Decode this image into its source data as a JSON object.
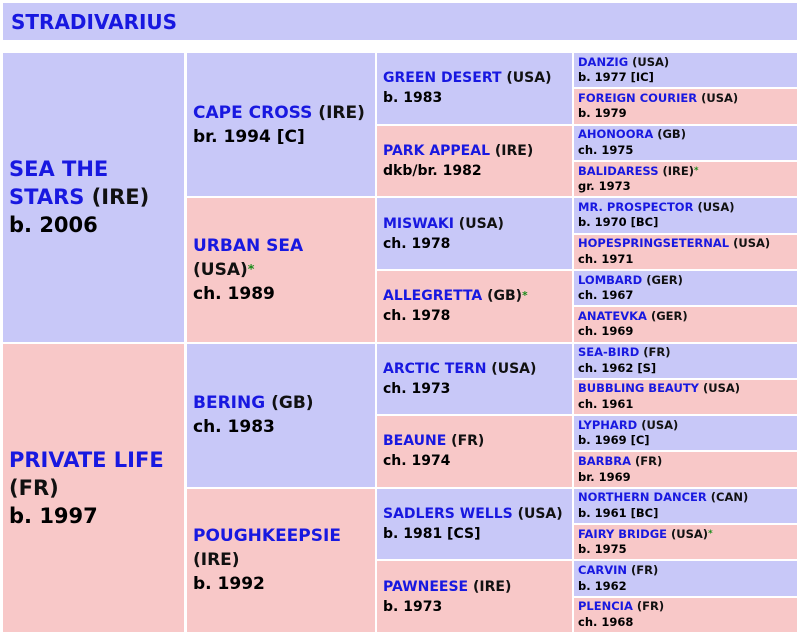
{
  "title": "STRADIVARIUS",
  "gen1": [
    {
      "name": "SEA THE STARS",
      "country": "(IRE)",
      "star": "",
      "info": "b. 2006"
    },
    {
      "name": "PRIVATE LIFE",
      "country": "(FR)",
      "star": "",
      "info": "b. 1997"
    }
  ],
  "gen2": [
    {
      "name": "CAPE CROSS",
      "country": "(IRE)",
      "star": "",
      "info": "br. 1994 [C]"
    },
    {
      "name": "URBAN SEA",
      "country": "(USA)",
      "star": "*",
      "info": "ch. 1989"
    },
    {
      "name": "BERING",
      "country": "(GB)",
      "star": "",
      "info": "ch. 1983"
    },
    {
      "name": "POUGHKEEPSIE",
      "country": "(IRE)",
      "star": "",
      "info": "b. 1992"
    }
  ],
  "gen3": [
    {
      "name": "GREEN DESERT",
      "country": "(USA)",
      "star": "",
      "info": "b. 1983"
    },
    {
      "name": "PARK APPEAL",
      "country": "(IRE)",
      "star": "",
      "info": "dkb/br. 1982"
    },
    {
      "name": "MISWAKI",
      "country": "(USA)",
      "star": "",
      "info": "ch. 1978"
    },
    {
      "name": "ALLEGRETTA",
      "country": "(GB)",
      "star": "*",
      "info": "ch. 1978"
    },
    {
      "name": "ARCTIC TERN",
      "country": "(USA)",
      "star": "",
      "info": "ch. 1973"
    },
    {
      "name": "BEAUNE",
      "country": "(FR)",
      "star": "",
      "info": "ch. 1974"
    },
    {
      "name": "SADLERS WELLS",
      "country": "(USA)",
      "star": "",
      "info": "b. 1981 [CS]"
    },
    {
      "name": "PAWNEESE",
      "country": "(IRE)",
      "star": "",
      "info": "b. 1973"
    }
  ],
  "gen4": [
    {
      "name": "DANZIG",
      "country": "(USA)",
      "star": "",
      "info": "b. 1977 [IC]"
    },
    {
      "name": "FOREIGN COURIER",
      "country": "(USA)",
      "star": "",
      "info": "b. 1979"
    },
    {
      "name": "AHONOORA",
      "country": "(GB)",
      "star": "",
      "info": "ch. 1975"
    },
    {
      "name": "BALIDARESS",
      "country": "(IRE)",
      "star": "*",
      "info": "gr. 1973"
    },
    {
      "name": "MR. PROSPECTOR",
      "country": "(USA)",
      "star": "",
      "info": "b. 1970 [BC]"
    },
    {
      "name": "HOPESPRINGSETERNAL",
      "country": "(USA)",
      "star": "",
      "info": "ch. 1971"
    },
    {
      "name": "LOMBARD",
      "country": "(GER)",
      "star": "",
      "info": "ch. 1967"
    },
    {
      "name": "ANATEVKA",
      "country": "(GER)",
      "star": "",
      "info": "ch. 1969"
    },
    {
      "name": "SEA-BIRD",
      "country": "(FR)",
      "star": "",
      "info": "ch. 1962 [S]"
    },
    {
      "name": "BUBBLING BEAUTY",
      "country": "(USA)",
      "star": "",
      "info": "ch. 1961"
    },
    {
      "name": "LYPHARD",
      "country": "(USA)",
      "star": "",
      "info": "b. 1969 [C]"
    },
    {
      "name": "BARBRA",
      "country": "(FR)",
      "star": "",
      "info": "br. 1969"
    },
    {
      "name": "NORTHERN DANCER",
      "country": "(CAN)",
      "star": "",
      "info": "b. 1961 [BC]"
    },
    {
      "name": "FAIRY BRIDGE",
      "country": "(USA)",
      "star": "*",
      "info": "b. 1975"
    },
    {
      "name": "CARVIN",
      "country": "(FR)",
      "star": "",
      "info": "b. 1962"
    },
    {
      "name": "PLENCIA",
      "country": "(FR)",
      "star": "",
      "info": "ch. 1968"
    }
  ],
  "colors": {
    "sire_bg": "#c8c8f8",
    "dam_bg": "#f8c8c8",
    "name_link": "#1818e0",
    "star": "#1a8c1a"
  }
}
